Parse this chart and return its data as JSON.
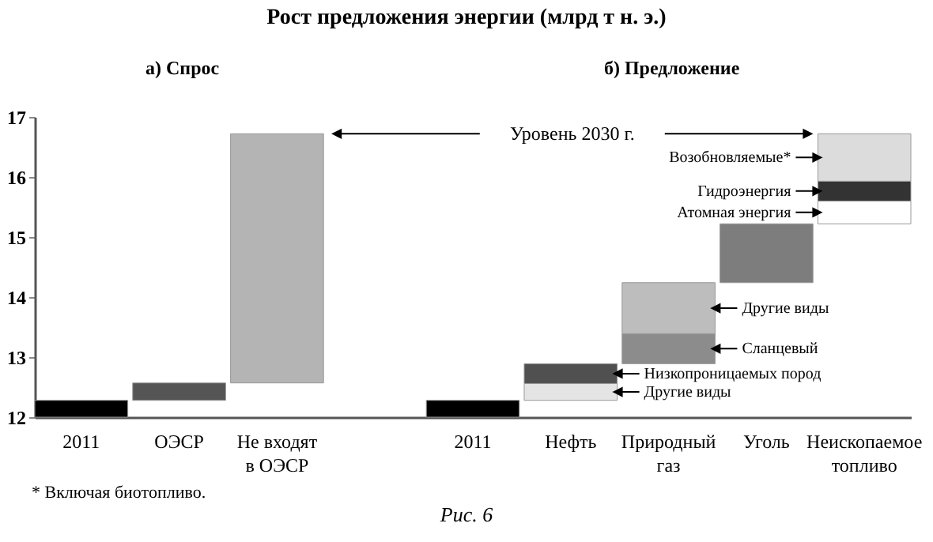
{
  "chart_data": {
    "type": "bar",
    "title": "Рост предложения энергии (млрд т н. э.)",
    "categories": [
      "2011",
      "ОЭСР",
      "Не входят в ОЭСР",
      null,
      "2011",
      "Нефть",
      "Природный газ",
      "Уголь",
      "Неископаемое топливо"
    ],
    "ylim": [
      12,
      17
    ],
    "yticks": [
      12,
      13,
      14,
      15,
      16,
      17
    ],
    "series": [
      {
        "color": "#000000",
        "base": [
          12,
          null,
          null,
          null,
          12,
          null,
          null,
          null,
          null
        ],
        "values": [
          0.28,
          null,
          null,
          null,
          0.28,
          null,
          null,
          null,
          null
        ]
      },
      {
        "color": "#555555",
        "base": [
          null,
          12.28,
          null,
          null,
          null,
          null,
          null,
          null,
          null
        ],
        "values": [
          null,
          0.29,
          null,
          null,
          null,
          null,
          null,
          null,
          null
        ]
      },
      {
        "color": "#b4b4b4",
        "base": [
          null,
          null,
          12.57,
          null,
          null,
          null,
          null,
          null,
          null
        ],
        "values": [
          null,
          null,
          4.15,
          null,
          null,
          null,
          null,
          null,
          null
        ]
      },
      {
        "name": "Другие виды",
        "color": "#e4e4e4",
        "base": [
          null,
          null,
          null,
          null,
          null,
          12.28,
          null,
          null,
          null
        ],
        "values": [
          null,
          null,
          null,
          null,
          null,
          0.28,
          null,
          null,
          null
        ]
      },
      {
        "name": "Низкопроницаемых пород",
        "color": "#505050",
        "base": [
          null,
          null,
          null,
          null,
          null,
          12.56,
          null,
          null,
          null
        ],
        "values": [
          null,
          null,
          null,
          null,
          null,
          0.33,
          null,
          null,
          null
        ]
      },
      {
        "name": "Сланцевый",
        "color": "#8c8c8c",
        "base": [
          null,
          null,
          null,
          null,
          null,
          null,
          12.89,
          null,
          null
        ],
        "values": [
          null,
          null,
          null,
          null,
          null,
          null,
          0.5,
          null,
          null
        ]
      },
      {
        "name": "Другие виды",
        "color": "#bdbdbd",
        "base": [
          null,
          null,
          null,
          null,
          null,
          null,
          13.39,
          null,
          null
        ],
        "values": [
          null,
          null,
          null,
          null,
          null,
          null,
          0.85,
          null,
          null
        ]
      },
      {
        "color": "#7d7d7d",
        "base": [
          null,
          null,
          null,
          null,
          null,
          null,
          null,
          14.24,
          null
        ],
        "values": [
          null,
          null,
          null,
          null,
          null,
          null,
          null,
          0.98,
          null
        ]
      },
      {
        "name": "Атомная энергия",
        "color": "#ffffff",
        "base": [
          null,
          null,
          null,
          null,
          null,
          null,
          null,
          null,
          15.22
        ],
        "values": [
          null,
          null,
          null,
          null,
          null,
          null,
          null,
          null,
          0.38
        ]
      },
      {
        "name": "Гидроэнергия",
        "color": "#333333",
        "base": [
          null,
          null,
          null,
          null,
          null,
          null,
          null,
          null,
          15.6
        ],
        "values": [
          null,
          null,
          null,
          null,
          null,
          null,
          null,
          null,
          0.33
        ]
      },
      {
        "name": "Возобновляемые*",
        "color": "#dcdcdc",
        "base": [
          null,
          null,
          null,
          null,
          null,
          null,
          null,
          null,
          15.93
        ],
        "values": [
          null,
          null,
          null,
          null,
          null,
          null,
          null,
          null,
          0.79
        ]
      }
    ],
    "annotations": [
      "а) Спрос",
      "б) Предложение",
      "Уровень 2030 г.",
      "* Включая биотопливо.",
      "Рис. 6"
    ]
  }
}
